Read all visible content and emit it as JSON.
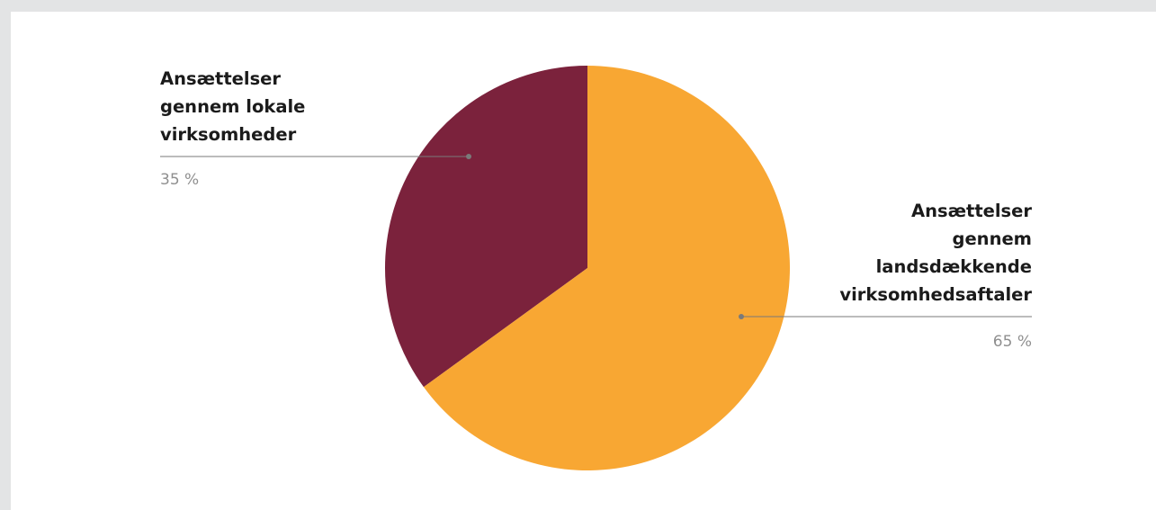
{
  "chart_data": {
    "type": "pie",
    "slices": [
      {
        "label": "Ansættelser\ngennem lokale\nvirksomheder",
        "value": 35,
        "value_label": "35 %",
        "color": "#7b223c"
      },
      {
        "label": "Ansættelser\ngennem\nlandsdækkende\nvirksomhedsaftaler",
        "value": 65,
        "value_label": "65 %",
        "color": "#f8a733"
      }
    ],
    "start_angle_deg": 0,
    "direction": "clockwise-for-second-slice",
    "leader_line_color": "#7a7a7a"
  }
}
